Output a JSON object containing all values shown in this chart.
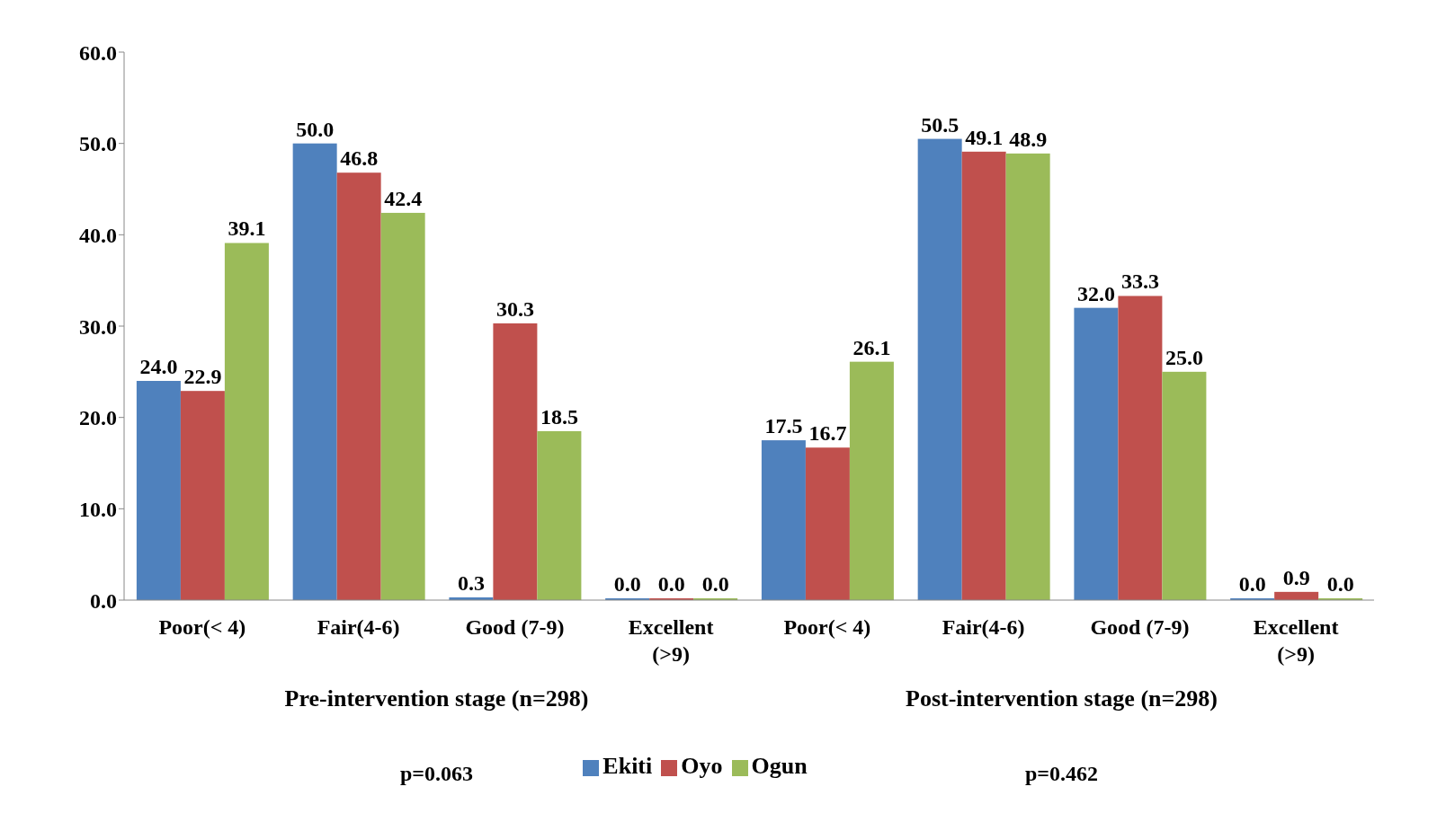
{
  "chart_data": {
    "type": "bar",
    "categories": [
      "Poor(< 4)",
      "Fair(4-6)",
      "Good (7-9)",
      "Excellent (>9)",
      "Poor(< 4)",
      "Fair(4-6)",
      "Good (7-9)",
      "Excellent (>9)"
    ],
    "series": [
      {
        "name": "Ekiti",
        "color": "#4f81bd",
        "values": [
          24.0,
          50.0,
          0.3,
          0.0,
          17.5,
          50.5,
          32.0,
          0.0
        ],
        "value_labels": [
          "24.0",
          "50.0",
          "0.3",
          "0.0",
          "17.5",
          "50.5",
          "32.0",
          "0.0"
        ]
      },
      {
        "name": "Oyo",
        "color": "#c0504d",
        "values": [
          22.9,
          46.8,
          30.3,
          0.0,
          16.7,
          49.1,
          33.3,
          0.9
        ],
        "value_labels": [
          "22.9",
          "46.8",
          "30.3",
          "0.0",
          "16.7",
          "49.1",
          "33.3",
          "0.9"
        ]
      },
      {
        "name": "Ogun",
        "color": "#9bbb59",
        "values": [
          39.1,
          42.4,
          18.5,
          0.0,
          26.1,
          48.9,
          25.0,
          0.0
        ],
        "value_labels": [
          "39.1",
          "42.4",
          "18.5",
          "0.0",
          "26.1",
          "48.9",
          "25.0",
          "0.0"
        ]
      }
    ],
    "ylim": [
      0,
      60
    ],
    "yticks": [
      {
        "value": 0,
        "label": "0.0"
      },
      {
        "value": 10,
        "label": "10.0"
      },
      {
        "value": 20,
        "label": "20.0"
      },
      {
        "value": 30,
        "label": "30.0"
      },
      {
        "value": 40,
        "label": "40.0"
      },
      {
        "value": 50,
        "label": "50.0"
      },
      {
        "value": 60,
        "label": "60.0"
      }
    ],
    "annotations": [
      "Pre-intervention stage (n=298)",
      "Post-intervention stage (n=298)",
      "p=0.063",
      "p=0.462"
    ],
    "grid": false,
    "legend": "bottom"
  }
}
